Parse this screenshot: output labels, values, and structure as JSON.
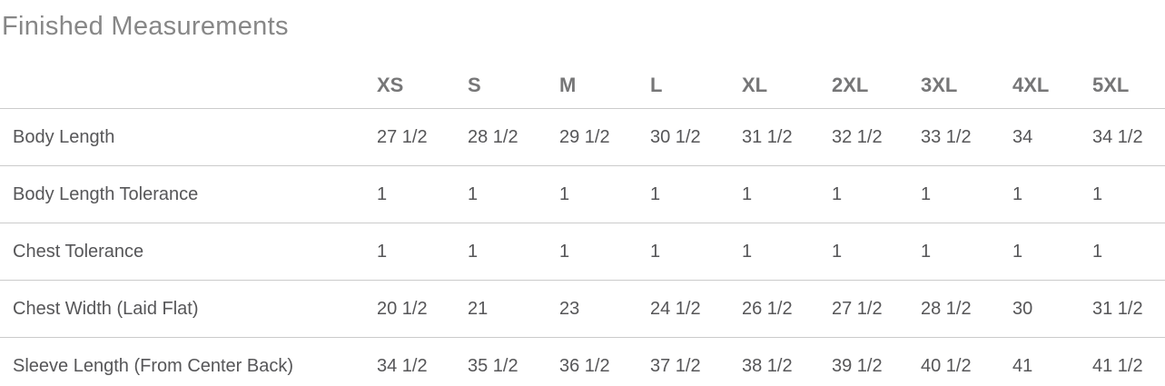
{
  "page_title": "Finished Measurements",
  "colors": {
    "background": "#ffffff",
    "title_text": "#878787",
    "header_text": "#767677",
    "body_text": "#565658",
    "row_border": "#cbcbcb"
  },
  "chart_data": {
    "type": "table",
    "title": "Finished Measurements",
    "columns": [
      "XS",
      "S",
      "M",
      "L",
      "XL",
      "2XL",
      "3XL",
      "4XL",
      "5XL"
    ],
    "rows": [
      {
        "label": "Body Length",
        "values": [
          "27 1/2",
          "28 1/2",
          "29 1/2",
          "30 1/2",
          "31 1/2",
          "32 1/2",
          "33 1/2",
          "34",
          "34 1/2"
        ]
      },
      {
        "label": "Body Length Tolerance",
        "values": [
          "1",
          "1",
          "1",
          "1",
          "1",
          "1",
          "1",
          "1",
          "1"
        ]
      },
      {
        "label": "Chest Tolerance",
        "values": [
          "1",
          "1",
          "1",
          "1",
          "1",
          "1",
          "1",
          "1",
          "1"
        ]
      },
      {
        "label": "Chest Width (Laid Flat)",
        "values": [
          "20 1/2",
          "21",
          "23",
          "24 1/2",
          "26 1/2",
          "27 1/2",
          "28 1/2",
          "30",
          "31 1/2"
        ]
      },
      {
        "label": "Sleeve Length (From Center Back)",
        "values": [
          "34 1/2",
          "35 1/2",
          "36 1/2",
          "37 1/2",
          "38 1/2",
          "39 1/2",
          "40 1/2",
          "41",
          "41 1/2"
        ]
      }
    ]
  }
}
